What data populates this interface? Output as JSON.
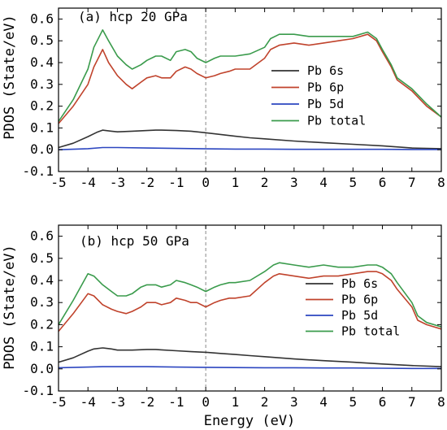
{
  "figure": {
    "ylabel": "PDOS (State/eV)",
    "xlabel": "Energy (eV)"
  },
  "chart_data": [
    {
      "type": "line",
      "title": "(a) hcp 20 GPa",
      "xlabel": "Energy (eV)",
      "ylabel": "PDOS (State/eV)",
      "xlim": [
        -5,
        8
      ],
      "ylim": [
        -0.1,
        0.65
      ],
      "xticks": [
        "-5",
        "-4",
        "-3",
        "-2",
        "-1",
        "0",
        "1",
        "2",
        "3",
        "4",
        "5",
        "6",
        "7",
        "8"
      ],
      "yticks": [
        "-0.1",
        "0.0",
        "0.1",
        "0.2",
        "0.3",
        "0.4",
        "0.5",
        "0.6"
      ],
      "fermi_level": 0,
      "legend_position": "center-right",
      "series": [
        {
          "name": "Pb 6s",
          "color": "#333333",
          "x": [
            -5,
            -4.5,
            -4,
            -3.7,
            -3.5,
            -3.2,
            -3,
            -2.5,
            -2,
            -1.7,
            -1.5,
            -1,
            -0.5,
            0,
            0.5,
            1,
            1.5,
            2,
            3,
            4,
            5,
            6,
            7,
            8
          ],
          "y": [
            0.01,
            0.03,
            0.06,
            0.08,
            0.09,
            0.085,
            0.082,
            0.085,
            0.088,
            0.09,
            0.09,
            0.088,
            0.085,
            0.078,
            0.07,
            0.062,
            0.055,
            0.05,
            0.04,
            0.032,
            0.025,
            0.018,
            0.008,
            0.005
          ]
        },
        {
          "name": "Pb 6p",
          "color": "#c0432c",
          "x": [
            -5,
            -4.5,
            -4,
            -3.8,
            -3.5,
            -3.3,
            -3,
            -2.7,
            -2.5,
            -2.2,
            -2,
            -1.7,
            -1.5,
            -1.2,
            -1,
            -0.7,
            -0.5,
            -0.3,
            0,
            0.3,
            0.5,
            0.8,
            1,
            1.5,
            2,
            2.2,
            2.5,
            3,
            3.5,
            4,
            4.5,
            5,
            5.5,
            5.8,
            6,
            6.3,
            6.5,
            7,
            7.5,
            8
          ],
          "y": [
            0.12,
            0.2,
            0.3,
            0.38,
            0.46,
            0.4,
            0.34,
            0.3,
            0.28,
            0.31,
            0.33,
            0.34,
            0.33,
            0.33,
            0.36,
            0.38,
            0.37,
            0.35,
            0.33,
            0.34,
            0.35,
            0.36,
            0.37,
            0.37,
            0.42,
            0.46,
            0.48,
            0.49,
            0.48,
            0.49,
            0.5,
            0.51,
            0.53,
            0.5,
            0.45,
            0.38,
            0.32,
            0.27,
            0.2,
            0.15
          ]
        },
        {
          "name": "Pb 5d",
          "color": "#2c46c0",
          "x": [
            -5,
            -4,
            -3.5,
            -3,
            -2,
            -1,
            0,
            1,
            2,
            3,
            4,
            5,
            6,
            7,
            8
          ],
          "y": [
            0.0,
            0.005,
            0.01,
            0.01,
            0.008,
            0.006,
            0.004,
            0.003,
            0.003,
            0.002,
            0.002,
            0.002,
            0.002,
            0.001,
            0.001
          ]
        },
        {
          "name": "Pb total",
          "color": "#3a9b4c",
          "x": [
            -5,
            -4.5,
            -4,
            -3.8,
            -3.5,
            -3.3,
            -3,
            -2.7,
            -2.5,
            -2.2,
            -2,
            -1.7,
            -1.5,
            -1.2,
            -1,
            -0.7,
            -0.5,
            -0.3,
            0,
            0.3,
            0.5,
            0.8,
            1,
            1.5,
            2,
            2.2,
            2.5,
            3,
            3.5,
            4,
            4.5,
            5,
            5.5,
            5.8,
            6,
            6.3,
            6.5,
            7,
            7.5,
            8
          ],
          "y": [
            0.13,
            0.23,
            0.37,
            0.47,
            0.55,
            0.5,
            0.43,
            0.39,
            0.37,
            0.39,
            0.41,
            0.43,
            0.43,
            0.41,
            0.45,
            0.46,
            0.45,
            0.42,
            0.4,
            0.42,
            0.43,
            0.43,
            0.43,
            0.44,
            0.47,
            0.51,
            0.53,
            0.53,
            0.52,
            0.52,
            0.52,
            0.52,
            0.54,
            0.51,
            0.46,
            0.39,
            0.33,
            0.28,
            0.21,
            0.15
          ]
        }
      ]
    },
    {
      "type": "line",
      "title": "(b) hcp 50 GPa",
      "xlabel": "Energy (eV)",
      "ylabel": "PDOS (State/eV)",
      "xlim": [
        -5,
        8
      ],
      "ylim": [
        -0.1,
        0.65
      ],
      "xticks": [
        "-5",
        "-4",
        "-3",
        "-2",
        "-1",
        "0",
        "1",
        "2",
        "3",
        "4",
        "5",
        "6",
        "7",
        "8"
      ],
      "yticks": [
        "-0.1",
        "0.0",
        "0.1",
        "0.2",
        "0.3",
        "0.4",
        "0.5",
        "0.6"
      ],
      "fermi_level": 0,
      "legend_position": "center-right",
      "series": [
        {
          "name": "Pb 6s",
          "color": "#333333",
          "x": [
            -5,
            -4.5,
            -4,
            -3.8,
            -3.5,
            -3.2,
            -3,
            -2.5,
            -2,
            -1.7,
            -1.5,
            -1,
            -0.5,
            0,
            0.5,
            1,
            1.5,
            2,
            3,
            4,
            5,
            6,
            7,
            8
          ],
          "y": [
            0.03,
            0.05,
            0.08,
            0.09,
            0.095,
            0.09,
            0.085,
            0.085,
            0.088,
            0.088,
            0.086,
            0.082,
            0.078,
            0.075,
            0.07,
            0.065,
            0.06,
            0.055,
            0.045,
            0.037,
            0.03,
            0.022,
            0.015,
            0.01
          ]
        },
        {
          "name": "Pb 6p",
          "color": "#c0432c",
          "x": [
            -5,
            -4.5,
            -4,
            -3.8,
            -3.5,
            -3.2,
            -3,
            -2.7,
            -2.5,
            -2.2,
            -2,
            -1.7,
            -1.5,
            -1.2,
            -1,
            -0.7,
            -0.5,
            -0.3,
            0,
            0.3,
            0.5,
            0.8,
            1,
            1.5,
            2,
            2.3,
            2.5,
            3,
            3.5,
            4,
            4.5,
            5,
            5.5,
            5.8,
            6,
            6.3,
            6.5,
            7,
            7.2,
            7.5,
            8
          ],
          "y": [
            0.17,
            0.25,
            0.34,
            0.33,
            0.29,
            0.27,
            0.26,
            0.25,
            0.26,
            0.28,
            0.3,
            0.3,
            0.29,
            0.3,
            0.32,
            0.31,
            0.3,
            0.3,
            0.28,
            0.3,
            0.31,
            0.32,
            0.32,
            0.33,
            0.39,
            0.42,
            0.43,
            0.42,
            0.41,
            0.42,
            0.42,
            0.43,
            0.44,
            0.44,
            0.43,
            0.4,
            0.36,
            0.28,
            0.22,
            0.2,
            0.18
          ]
        },
        {
          "name": "Pb 5d",
          "color": "#2c46c0",
          "x": [
            -5,
            -4,
            -3.5,
            -3,
            -2,
            -1,
            0,
            1,
            2,
            3,
            4,
            5,
            6,
            7,
            8
          ],
          "y": [
            0.005,
            0.008,
            0.01,
            0.01,
            0.01,
            0.008,
            0.007,
            0.006,
            0.005,
            0.005,
            0.004,
            0.004,
            0.003,
            0.002,
            0.002
          ]
        },
        {
          "name": "Pb total",
          "color": "#3a9b4c",
          "x": [
            -5,
            -4.5,
            -4,
            -3.8,
            -3.5,
            -3.2,
            -3,
            -2.7,
            -2.5,
            -2.2,
            -2,
            -1.7,
            -1.5,
            -1.2,
            -1,
            -0.7,
            -0.5,
            -0.3,
            0,
            0.3,
            0.5,
            0.8,
            1,
            1.5,
            2,
            2.3,
            2.5,
            3,
            3.5,
            4,
            4.5,
            5,
            5.5,
            5.8,
            6,
            6.3,
            6.5,
            7,
            7.2,
            7.5,
            8
          ],
          "y": [
            0.2,
            0.31,
            0.43,
            0.42,
            0.38,
            0.35,
            0.33,
            0.33,
            0.34,
            0.37,
            0.38,
            0.38,
            0.37,
            0.38,
            0.4,
            0.39,
            0.38,
            0.37,
            0.35,
            0.37,
            0.38,
            0.39,
            0.39,
            0.4,
            0.44,
            0.47,
            0.48,
            0.47,
            0.46,
            0.47,
            0.46,
            0.46,
            0.47,
            0.47,
            0.46,
            0.43,
            0.39,
            0.3,
            0.24,
            0.21,
            0.19
          ]
        }
      ]
    }
  ]
}
